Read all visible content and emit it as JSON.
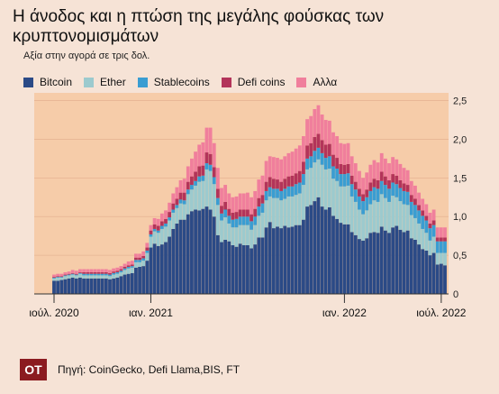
{
  "header": {
    "title": "Η άνοδος και η πτώση της μεγάλης φούσκας των κρυπτονομισμάτων",
    "subtitle": "Αξία στην αγορά σε τρις δολ."
  },
  "footer": {
    "logo_text": "OT",
    "source": "Πηγή: CoinGecko, Defi Llama,BIS, FT"
  },
  "colors": {
    "background": "#f6e3d6",
    "plot_area": "#f6cca9",
    "grid": "#e7b493"
  },
  "chart_data": {
    "type": "bar",
    "stacked": true,
    "title": "Η άνοδος και η πτώση της μεγάλης φούσκας των κρυπτονομισμάτων",
    "subtitle": "Αξία στην αγορά σε τρις δολ.",
    "xlabel": "",
    "ylabel": "",
    "ylim": [
      0,
      2.6
    ],
    "y_ticks": [
      0,
      0.5,
      1.0,
      1.5,
      2.0,
      2.5
    ],
    "y_tick_labels": [
      "0",
      "0,5",
      "1,0",
      "1,5",
      "2,0",
      "2,5"
    ],
    "y_axis_position": "right",
    "grid": "horizontal",
    "legend_position": "top",
    "x_ticks": [
      {
        "label": "ιούλ. 2020",
        "index": 0
      },
      {
        "label": "ιαν. 2021",
        "index": 26
      },
      {
        "label": "ιαν. 2022",
        "index": 78
      },
      {
        "label": "ιούλ. 2022",
        "index": 104
      }
    ],
    "weeks": 106,
    "series": [
      {
        "name": "Bitcoin",
        "color": "#2b4a86",
        "values": [
          0.17,
          0.17,
          0.18,
          0.19,
          0.2,
          0.21,
          0.2,
          0.21,
          0.2,
          0.2,
          0.2,
          0.2,
          0.2,
          0.2,
          0.2,
          0.19,
          0.2,
          0.21,
          0.23,
          0.25,
          0.26,
          0.27,
          0.34,
          0.35,
          0.36,
          0.43,
          0.6,
          0.65,
          0.62,
          0.64,
          0.67,
          0.74,
          0.84,
          0.91,
          0.96,
          0.96,
          1.03,
          1.07,
          1.09,
          1.08,
          1.1,
          1.13,
          1.09,
          1.0,
          0.76,
          0.67,
          0.7,
          0.68,
          0.63,
          0.61,
          0.65,
          0.63,
          0.63,
          0.59,
          0.64,
          0.73,
          0.73,
          0.86,
          0.93,
          0.85,
          0.87,
          0.85,
          0.88,
          0.86,
          0.87,
          0.89,
          0.89,
          0.96,
          1.13,
          1.15,
          1.2,
          1.25,
          1.13,
          1.09,
          1.12,
          1.01,
          0.97,
          0.92,
          0.9,
          0.9,
          0.8,
          0.76,
          0.71,
          0.69,
          0.72,
          0.79,
          0.8,
          0.79,
          0.87,
          0.82,
          0.79,
          0.86,
          0.88,
          0.83,
          0.8,
          0.82,
          0.72,
          0.7,
          0.64,
          0.58,
          0.56,
          0.5,
          0.53,
          0.38,
          0.39,
          0.37
        ]
      },
      {
        "name": "Ether",
        "color": "#9ccace",
        "values": [
          0.03,
          0.04,
          0.03,
          0.04,
          0.04,
          0.04,
          0.04,
          0.05,
          0.04,
          0.04,
          0.04,
          0.04,
          0.04,
          0.04,
          0.04,
          0.04,
          0.05,
          0.05,
          0.05,
          0.06,
          0.07,
          0.07,
          0.07,
          0.06,
          0.07,
          0.1,
          0.14,
          0.16,
          0.17,
          0.2,
          0.2,
          0.21,
          0.21,
          0.2,
          0.21,
          0.2,
          0.26,
          0.28,
          0.31,
          0.37,
          0.36,
          0.48,
          0.5,
          0.42,
          0.39,
          0.28,
          0.29,
          0.23,
          0.23,
          0.25,
          0.24,
          0.26,
          0.26,
          0.24,
          0.25,
          0.28,
          0.32,
          0.35,
          0.33,
          0.39,
          0.37,
          0.36,
          0.35,
          0.4,
          0.39,
          0.39,
          0.41,
          0.45,
          0.48,
          0.48,
          0.5,
          0.49,
          0.54,
          0.52,
          0.5,
          0.48,
          0.49,
          0.47,
          0.49,
          0.5,
          0.46,
          0.43,
          0.38,
          0.34,
          0.36,
          0.37,
          0.41,
          0.4,
          0.42,
          0.42,
          0.4,
          0.41,
          0.37,
          0.37,
          0.36,
          0.33,
          0.3,
          0.28,
          0.27,
          0.26,
          0.23,
          0.19,
          0.21,
          0.15,
          0.14,
          0.16
        ]
      },
      {
        "name": "Stablecoins",
        "color": "#3a9dd2",
        "values": [
          0.01,
          0.01,
          0.01,
          0.01,
          0.01,
          0.01,
          0.01,
          0.01,
          0.02,
          0.02,
          0.02,
          0.02,
          0.02,
          0.02,
          0.02,
          0.02,
          0.02,
          0.02,
          0.02,
          0.02,
          0.02,
          0.02,
          0.03,
          0.03,
          0.03,
          0.03,
          0.03,
          0.03,
          0.03,
          0.04,
          0.04,
          0.04,
          0.04,
          0.04,
          0.05,
          0.05,
          0.06,
          0.06,
          0.06,
          0.07,
          0.07,
          0.08,
          0.08,
          0.09,
          0.09,
          0.09,
          0.1,
          0.1,
          0.1,
          0.11,
          0.11,
          0.11,
          0.11,
          0.11,
          0.11,
          0.12,
          0.12,
          0.12,
          0.12,
          0.12,
          0.12,
          0.12,
          0.13,
          0.13,
          0.13,
          0.14,
          0.14,
          0.14,
          0.14,
          0.15,
          0.15,
          0.15,
          0.15,
          0.15,
          0.16,
          0.16,
          0.16,
          0.16,
          0.16,
          0.16,
          0.16,
          0.16,
          0.17,
          0.17,
          0.17,
          0.17,
          0.17,
          0.17,
          0.17,
          0.17,
          0.17,
          0.17,
          0.17,
          0.17,
          0.17,
          0.17,
          0.17,
          0.17,
          0.17,
          0.17,
          0.16,
          0.16,
          0.15,
          0.15,
          0.15,
          0.15
        ]
      },
      {
        "name": "Defi coins",
        "color": "#b3345a",
        "values": [
          0.01,
          0.01,
          0.01,
          0.01,
          0.01,
          0.01,
          0.01,
          0.01,
          0.02,
          0.02,
          0.02,
          0.02,
          0.02,
          0.02,
          0.02,
          0.02,
          0.02,
          0.02,
          0.02,
          0.02,
          0.02,
          0.02,
          0.03,
          0.03,
          0.03,
          0.04,
          0.05,
          0.06,
          0.06,
          0.06,
          0.06,
          0.07,
          0.08,
          0.08,
          0.09,
          0.1,
          0.1,
          0.11,
          0.12,
          0.13,
          0.13,
          0.14,
          0.14,
          0.13,
          0.12,
          0.1,
          0.1,
          0.09,
          0.09,
          0.09,
          0.09,
          0.09,
          0.09,
          0.09,
          0.1,
          0.11,
          0.11,
          0.12,
          0.13,
          0.13,
          0.12,
          0.12,
          0.13,
          0.13,
          0.14,
          0.14,
          0.15,
          0.16,
          0.17,
          0.17,
          0.18,
          0.18,
          0.17,
          0.17,
          0.16,
          0.15,
          0.14,
          0.13,
          0.12,
          0.12,
          0.11,
          0.1,
          0.1,
          0.09,
          0.1,
          0.11,
          0.11,
          0.11,
          0.12,
          0.11,
          0.11,
          0.11,
          0.11,
          0.1,
          0.1,
          0.09,
          0.09,
          0.08,
          0.07,
          0.07,
          0.06,
          0.06,
          0.06,
          0.05,
          0.05,
          0.05
        ]
      },
      {
        "name": "Αλλα",
        "color": "#f07f9c",
        "values": [
          0.03,
          0.03,
          0.03,
          0.03,
          0.03,
          0.04,
          0.04,
          0.04,
          0.04,
          0.04,
          0.04,
          0.04,
          0.04,
          0.04,
          0.04,
          0.04,
          0.04,
          0.04,
          0.04,
          0.04,
          0.05,
          0.05,
          0.05,
          0.05,
          0.06,
          0.06,
          0.07,
          0.08,
          0.09,
          0.1,
          0.11,
          0.12,
          0.13,
          0.15,
          0.16,
          0.18,
          0.2,
          0.23,
          0.26,
          0.28,
          0.3,
          0.32,
          0.34,
          0.31,
          0.27,
          0.23,
          0.22,
          0.2,
          0.2,
          0.2,
          0.21,
          0.21,
          0.22,
          0.22,
          0.23,
          0.24,
          0.25,
          0.27,
          0.27,
          0.28,
          0.28,
          0.29,
          0.29,
          0.3,
          0.31,
          0.32,
          0.33,
          0.33,
          0.34,
          0.35,
          0.36,
          0.37,
          0.33,
          0.32,
          0.3,
          0.29,
          0.28,
          0.27,
          0.27,
          0.27,
          0.25,
          0.24,
          0.23,
          0.21,
          0.22,
          0.23,
          0.24,
          0.23,
          0.24,
          0.23,
          0.22,
          0.22,
          0.21,
          0.21,
          0.2,
          0.19,
          0.18,
          0.17,
          0.16,
          0.15,
          0.15,
          0.14,
          0.14,
          0.13,
          0.13,
          0.13
        ]
      }
    ]
  }
}
